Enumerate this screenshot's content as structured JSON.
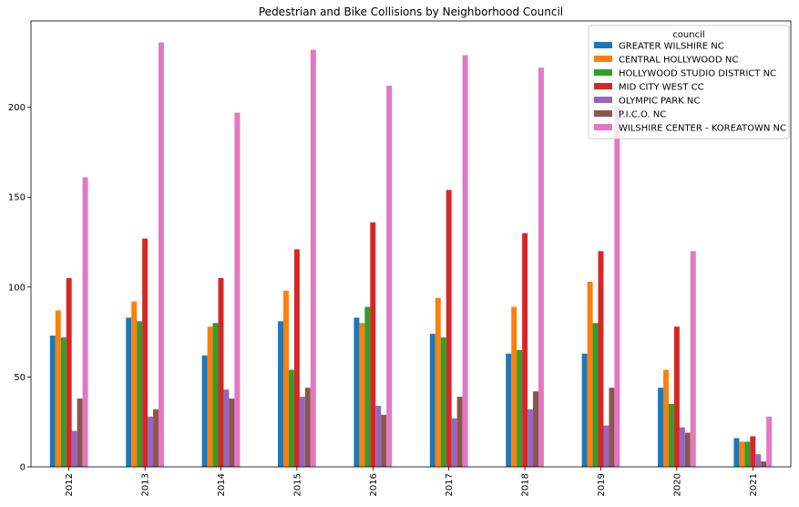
{
  "chart_data": {
    "type": "bar",
    "title": "Pedestrian and Bike Collisions by Neighborhood Council",
    "xlabel": "",
    "ylabel": "",
    "ylim": [
      0,
      248
    ],
    "yticks": [
      0,
      50,
      100,
      150,
      200
    ],
    "grid": false,
    "legend_title": "council",
    "legend_placement": "top-right",
    "categories": [
      "2012",
      "2013",
      "2014",
      "2015",
      "2016",
      "2017",
      "2018",
      "2019",
      "2020",
      "2021"
    ],
    "series": [
      {
        "name": "GREATER WILSHIRE NC",
        "color": "#1f77b4",
        "values": [
          73,
          83,
          62,
          81,
          83,
          74,
          63,
          63,
          44,
          16
        ]
      },
      {
        "name": "CENTRAL HOLLYWOOD NC",
        "color": "#ff7f0e",
        "values": [
          87,
          92,
          78,
          98,
          80,
          94,
          89,
          103,
          54,
          14
        ]
      },
      {
        "name": "HOLLYWOOD STUDIO DISTRICT NC",
        "color": "#2ca02c",
        "values": [
          72,
          81,
          80,
          54,
          89,
          72,
          65,
          80,
          35,
          14
        ]
      },
      {
        "name": "MID CITY WEST CC",
        "color": "#d62728",
        "values": [
          105,
          127,
          105,
          121,
          136,
          154,
          130,
          120,
          78,
          17
        ]
      },
      {
        "name": "OLYMPIC PARK NC",
        "color": "#9467bd",
        "values": [
          20,
          28,
          43,
          39,
          34,
          27,
          32,
          23,
          22,
          7
        ]
      },
      {
        "name": "P.I.C.O. NC",
        "color": "#8c564b",
        "values": [
          38,
          32,
          38,
          44,
          29,
          39,
          42,
          44,
          19,
          3
        ]
      },
      {
        "name": "WILSHIRE CENTER - KOREATOWN NC",
        "color": "#e377c2",
        "values": [
          161,
          236,
          197,
          232,
          212,
          229,
          222,
          200,
          120,
          28
        ]
      }
    ]
  }
}
